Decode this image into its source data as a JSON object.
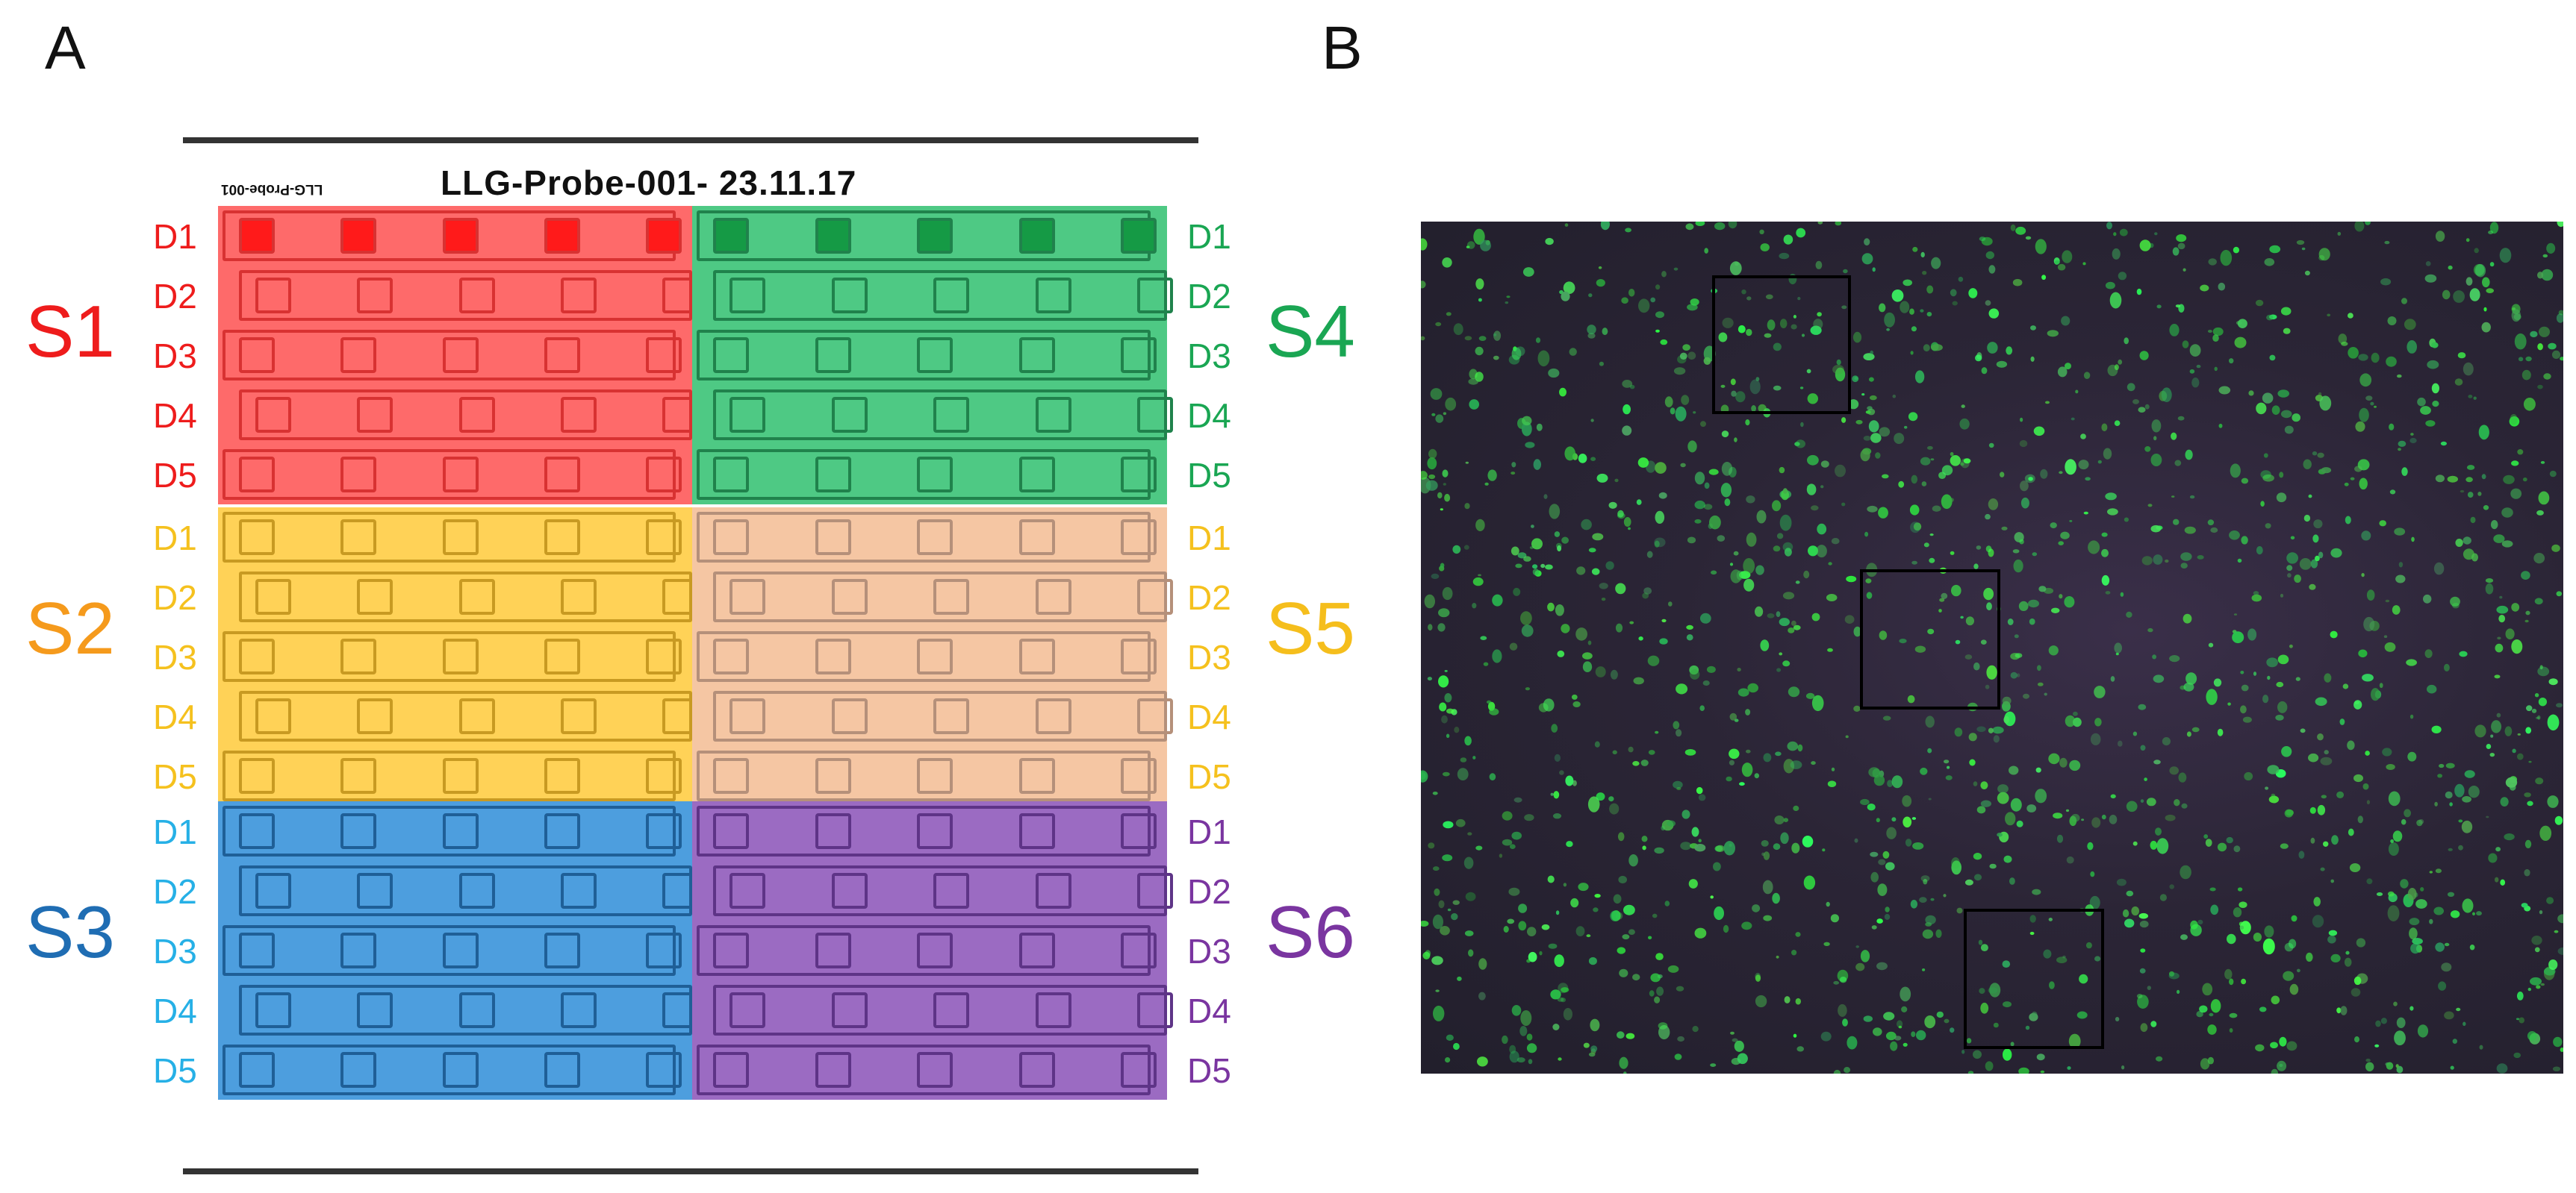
{
  "panels": {
    "a_label": "A",
    "b_label": "B"
  },
  "chip": {
    "title": "LLG-Probe-001- 23.11.17",
    "mirrored_label": "LLG-Probe-001",
    "row_labels": [
      "D1",
      "D2",
      "D3",
      "D4",
      "D5"
    ],
    "sectors": [
      {
        "name": "S1",
        "side": "left",
        "block": 0,
        "fill": "#fe6a6a",
        "line": "#d83232",
        "label_color": "#ee1c1c",
        "spot_fill": "#ff1a1a"
      },
      {
        "name": "S2",
        "side": "left",
        "block": 1,
        "fill": "#ffd257",
        "line": "#c89a22",
        "label_color": "#f59a1c"
      },
      {
        "name": "S3",
        "side": "left",
        "block": 2,
        "fill": "#4d9ede",
        "line": "#1f5f97",
        "label_color": "#1f6db3"
      },
      {
        "name": "S4",
        "side": "right",
        "block": 0,
        "fill": "#4ec984",
        "line": "#20824c",
        "label_color": "#1aa653",
        "spot_fill": "#159a45"
      },
      {
        "name": "S5",
        "side": "right",
        "block": 1,
        "fill": "#f5c6a3",
        "line": "#b5907a",
        "label_color": "#f5be1c"
      },
      {
        "name": "S6",
        "side": "right",
        "block": 2,
        "fill": "#9b6bc2",
        "line": "#5e3487",
        "label_color": "#7a35a0"
      }
    ],
    "row_label_colors": {
      "S1": "#ee1c1c",
      "S2": "#f5c11e",
      "S3": "#26b0e6",
      "S4": "#1aa653",
      "S5": "#f5c11e",
      "S6": "#7a35a0"
    }
  },
  "micrograph": {
    "background": "#2a2533",
    "cell_color": "#3ee04f",
    "rois": [
      {
        "name": "roi-blue",
        "color": "#4a78b8"
      },
      {
        "name": "roi-white",
        "color": "#ffffff"
      },
      {
        "name": "roi-red",
        "color": "#e01818"
      }
    ]
  }
}
